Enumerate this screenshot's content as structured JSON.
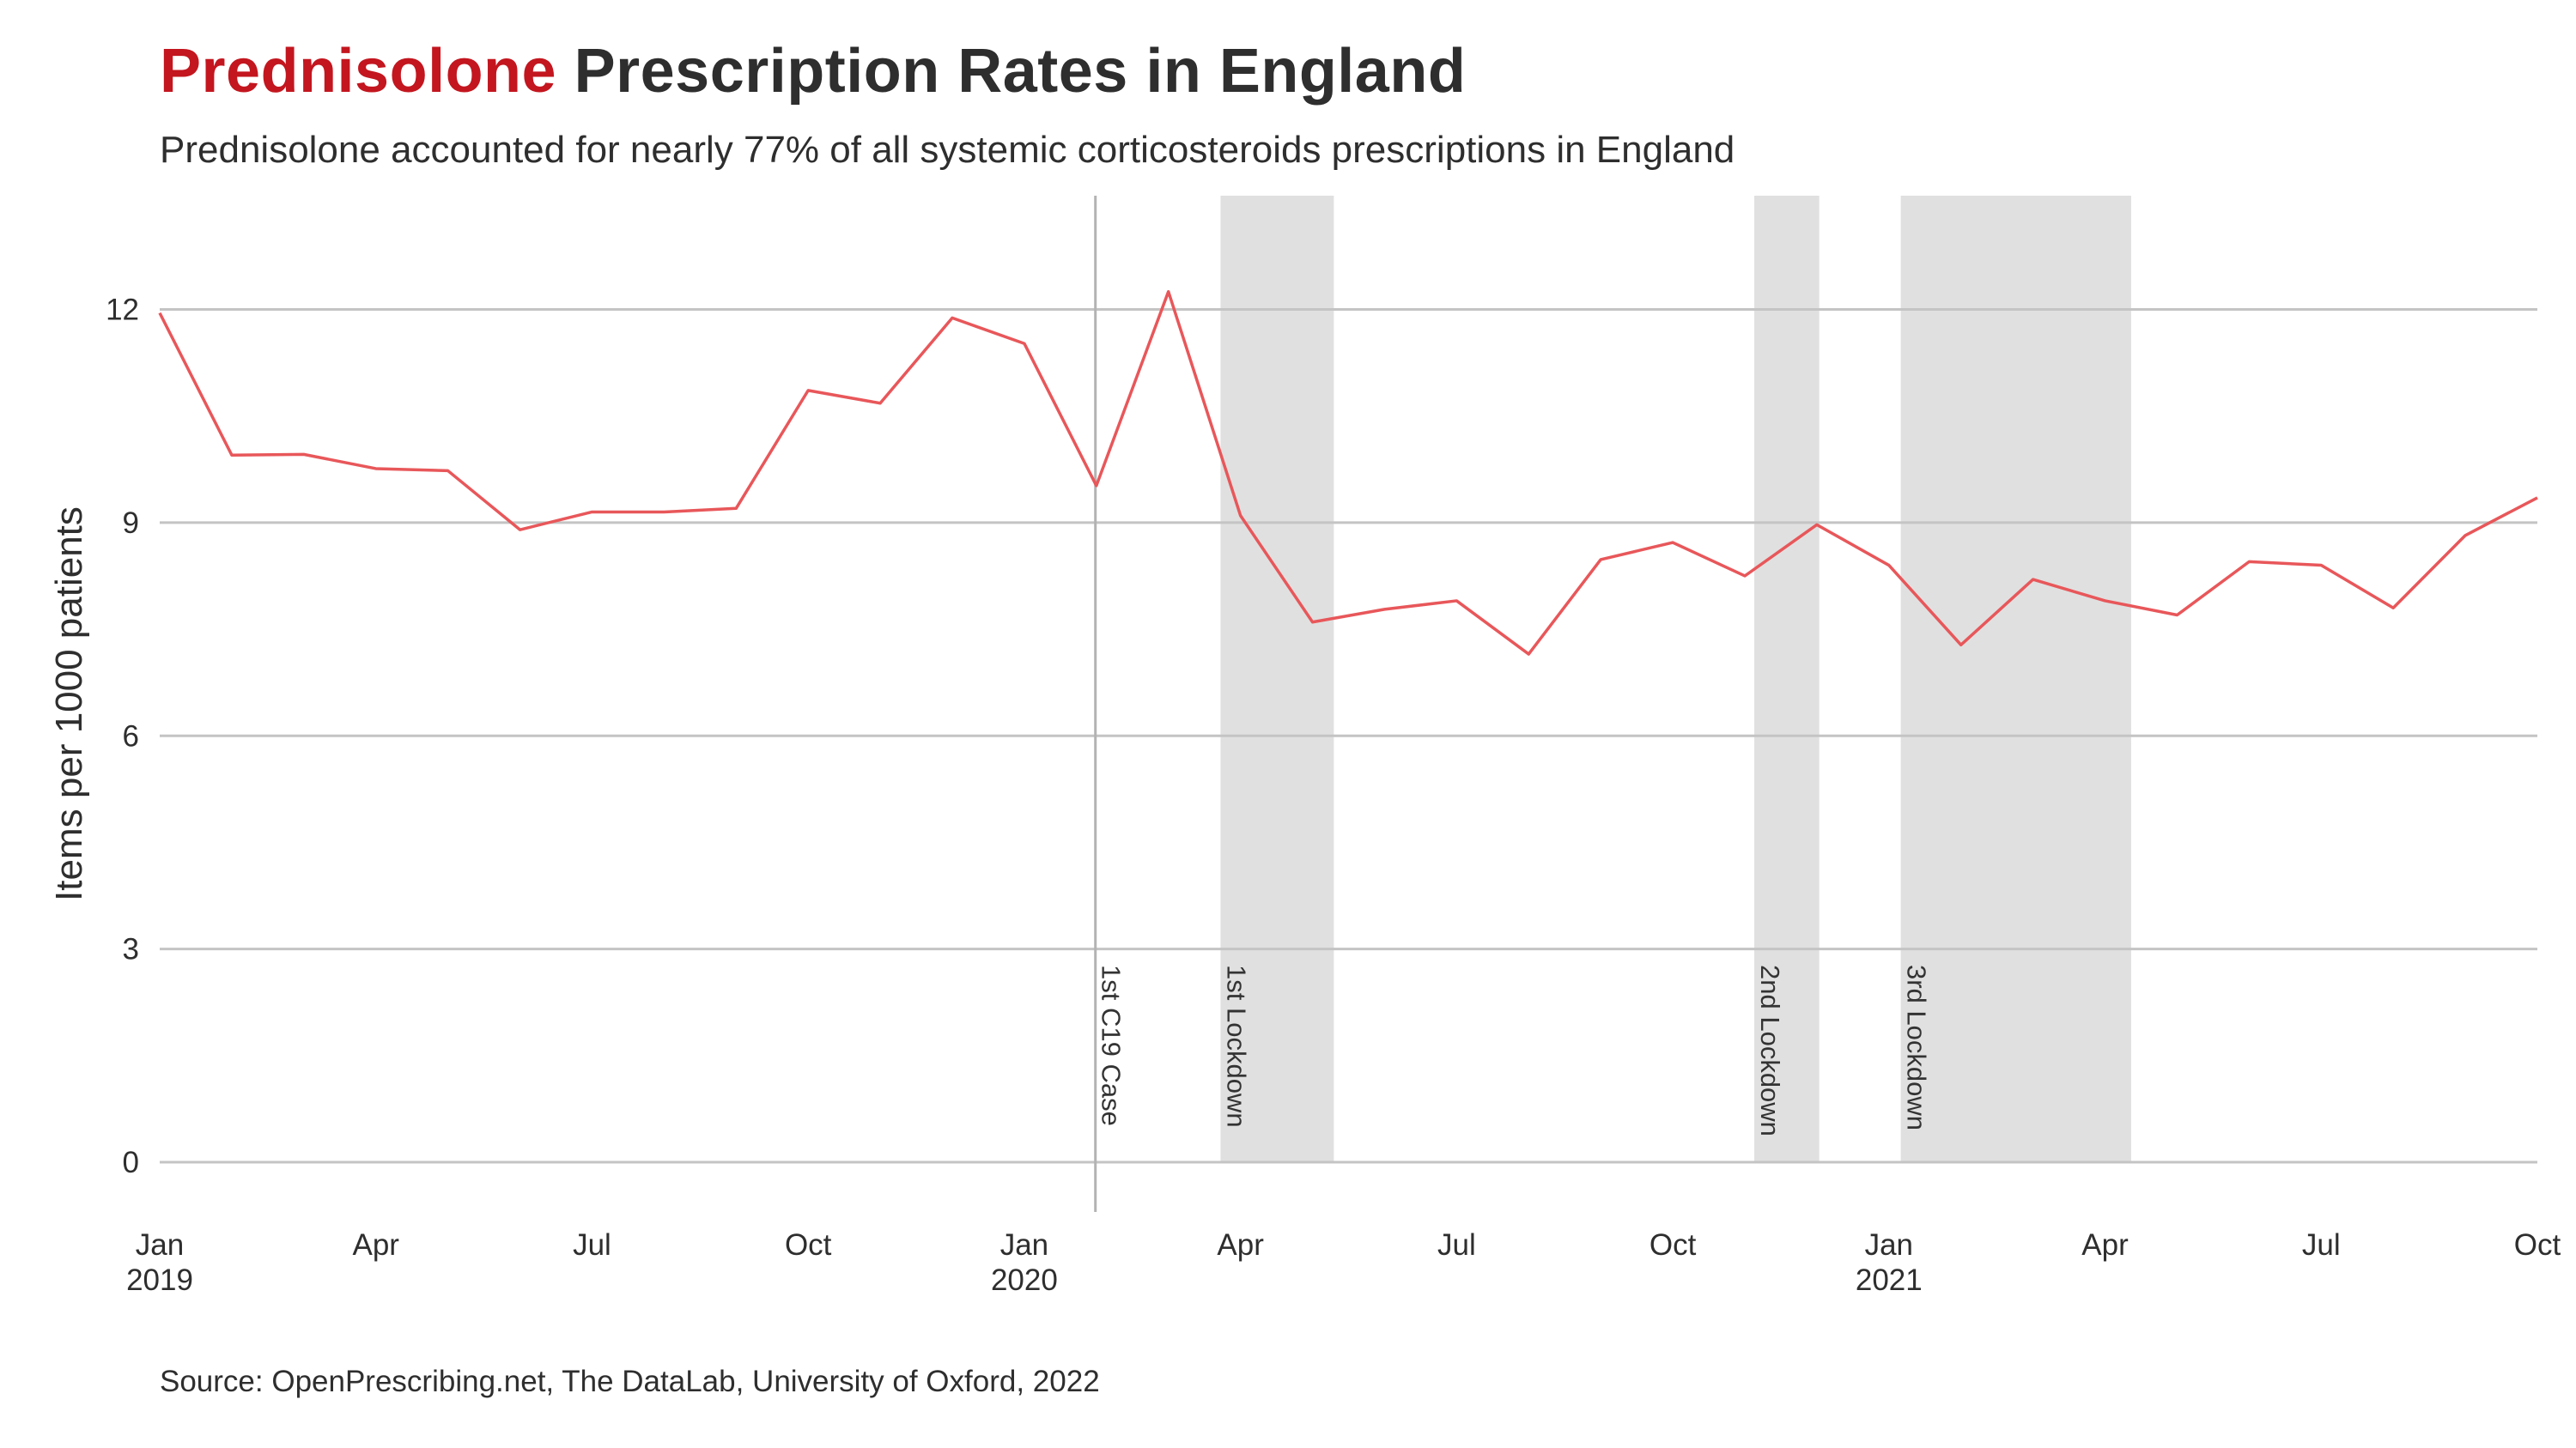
{
  "title": {
    "highlight": "Prednisolone",
    "rest": " Prescription Rates in England"
  },
  "subtitle": "Prednisolone accounted for nearly 77% of all systemic corticosteroids prescriptions in England",
  "caption": "Source: OpenPrescribing.net, The DataLab, University of Oxford, 2022",
  "colors": {
    "line": "#e8575a",
    "title_highlight": "#c3161f",
    "shade": "#e0e0e0",
    "grid": "#c4c4c4"
  },
  "chart_data": {
    "type": "line",
    "title": "Prednisolone Prescription Rates in England",
    "ylabel": "Items per 1000 patients",
    "xlabel": "",
    "ylim": [
      -0.7,
      13.6
    ],
    "xlim": [
      "2019-01",
      "2021-10"
    ],
    "yticks": [
      0,
      3,
      6,
      9,
      12
    ],
    "grid": "horizontal",
    "xticks": [
      {
        "month": "2019-01",
        "label": "Jan",
        "year": "2019"
      },
      {
        "month": "2019-04",
        "label": "Apr",
        "year": ""
      },
      {
        "month": "2019-07",
        "label": "Jul",
        "year": ""
      },
      {
        "month": "2019-10",
        "label": "Oct",
        "year": ""
      },
      {
        "month": "2020-01",
        "label": "Jan",
        "year": "2020"
      },
      {
        "month": "2020-04",
        "label": "Apr",
        "year": ""
      },
      {
        "month": "2020-07",
        "label": "Jul",
        "year": ""
      },
      {
        "month": "2020-10",
        "label": "Oct",
        "year": ""
      },
      {
        "month": "2021-01",
        "label": "Jan",
        "year": "2021"
      },
      {
        "month": "2021-04",
        "label": "Apr",
        "year": ""
      },
      {
        "month": "2021-07",
        "label": "Jul",
        "year": ""
      },
      {
        "month": "2021-10",
        "label": "Oct",
        "year": ""
      }
    ],
    "x": [
      "2019-01",
      "2019-02",
      "2019-03",
      "2019-04",
      "2019-05",
      "2019-06",
      "2019-07",
      "2019-08",
      "2019-09",
      "2019-10",
      "2019-11",
      "2019-12",
      "2020-01",
      "2020-02",
      "2020-03",
      "2020-04",
      "2020-05",
      "2020-06",
      "2020-07",
      "2020-08",
      "2020-09",
      "2020-10",
      "2020-11",
      "2020-12",
      "2021-01",
      "2021-02",
      "2021-03",
      "2021-04",
      "2021-05",
      "2021-06",
      "2021-07",
      "2021-08",
      "2021-09",
      "2021-10"
    ],
    "series": [
      {
        "values": [
          11.95,
          9.95,
          9.96,
          9.76,
          9.73,
          8.9,
          9.15,
          9.15,
          9.2,
          10.86,
          10.68,
          11.88,
          11.52,
          9.52,
          12.25,
          9.1,
          7.6,
          7.78,
          7.9,
          7.15,
          8.48,
          8.72,
          8.25,
          8.97,
          8.4,
          7.28,
          8.2,
          7.9,
          7.7,
          8.45,
          8.4,
          7.8,
          8.82,
          9.35
        ]
      }
    ],
    "annotations": [
      {
        "type": "vline",
        "x": "2020-01-31",
        "label": "1st C19 Case"
      },
      {
        "type": "shade",
        "start": "2020-03-23",
        "end": "2020-05-10",
        "label": "1st Lockdown"
      },
      {
        "type": "shade",
        "start": "2020-11-05",
        "end": "2020-12-02",
        "label": "2nd Lockdown"
      },
      {
        "type": "shade",
        "start": "2021-01-06",
        "end": "2021-04-12",
        "label": "3rd Lockdown"
      }
    ]
  }
}
